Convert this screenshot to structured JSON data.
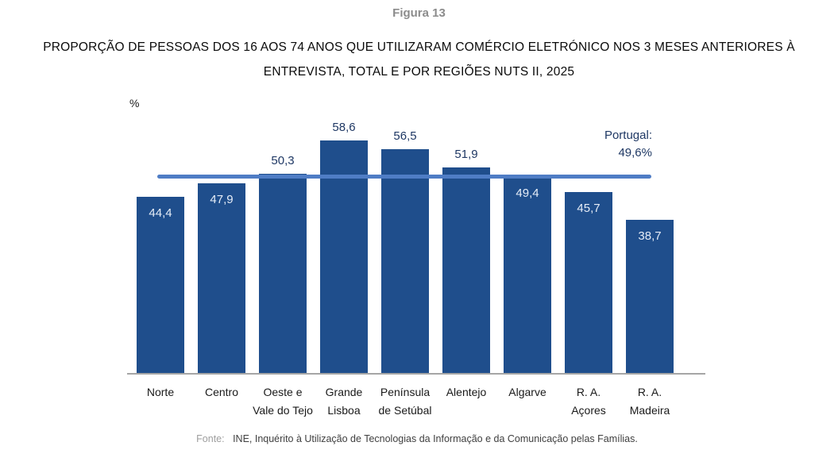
{
  "figure_label": "Figura 13",
  "title_line1": "PROPORÇÃO DE PESSOAS DOS 16 AOS 74 ANOS QUE UTILIZARAM COMÉRCIO ELETRÓNICO NOS 3 MESES ANTERIORES À",
  "title_line2": "ENTREVISTA, TOTAL E POR REGIÕES NUTS II, 2025",
  "chart_data": {
    "type": "bar",
    "title": "Proporção de pessoas dos 16 aos 74 anos que utilizaram comércio eletrónico nos 3 meses anteriores à entrevista, total e por regiões NUTS II, 2025",
    "unit_label": "%",
    "categories": [
      "Norte",
      "Centro",
      "Oeste e\nVale do Tejo",
      "Grande\nLisboa",
      "Península\nde Setúbal",
      "Alentejo",
      "Algarve",
      "R. A.\nAçores",
      "R. A.\nMadeira"
    ],
    "values": [
      44.4,
      47.9,
      50.3,
      58.6,
      56.5,
      51.9,
      49.4,
      45.7,
      38.7
    ],
    "value_labels": [
      "44,4",
      "47,9",
      "50,3",
      "58,6",
      "56,5",
      "51,9",
      "49,4",
      "45,7",
      "38,7"
    ],
    "reference_line": {
      "label_line1": "Portugal:",
      "label_line2": "49,6%",
      "value": 49.6
    },
    "ylim": [
      0,
      68
    ],
    "grid": false,
    "legend": false,
    "colors": {
      "bar": "#1F4E8C",
      "reference_line": "#4F7DC5",
      "label_outside": "#1F3864",
      "label_inside": "#E6EDF7",
      "axis": "#A6A6A6"
    }
  },
  "footer": {
    "prefix": "Fonte:",
    "text": "INE, Inquérito à Utilização de Tecnologias da Informação e da Comunicação pelas Famílias."
  }
}
